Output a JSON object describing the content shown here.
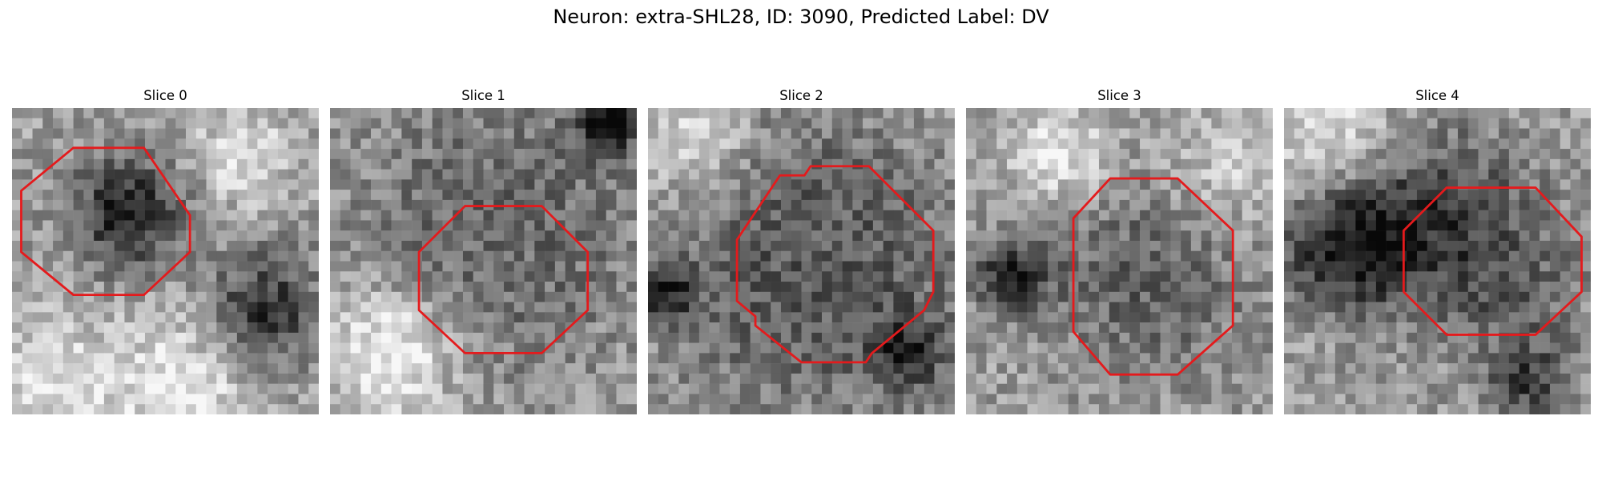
{
  "figure": {
    "title": "Neuron: extra-SHL28, ID: 3090, Predicted Label: DV"
  },
  "style": {
    "outline_color": "#e41a1c"
  },
  "panels": [
    {
      "title": "Slice 0",
      "seed": 11,
      "darkSpots": [
        [
          0.38,
          0.34,
          0.22,
          0.5
        ],
        [
          0.82,
          0.66,
          0.22,
          0.45
        ],
        [
          0.55,
          0.92,
          0.3,
          -0.3
        ],
        [
          0.1,
          0.9,
          0.25,
          -0.25
        ],
        [
          0.75,
          0.15,
          0.2,
          -0.25
        ]
      ],
      "outline": [
        [
          0.2,
          0.13
        ],
        [
          0.43,
          0.13
        ],
        [
          0.58,
          0.35
        ],
        [
          0.58,
          0.47
        ],
        [
          0.43,
          0.61
        ],
        [
          0.2,
          0.61
        ],
        [
          0.03,
          0.47
        ],
        [
          0.03,
          0.27
        ]
      ]
    },
    {
      "title": "Slice 1",
      "seed": 23,
      "darkSpots": [
        [
          0.55,
          0.4,
          0.48,
          0.35
        ],
        [
          0.55,
          0.4,
          0.3,
          -0.15
        ],
        [
          0.9,
          0.05,
          0.12,
          0.55
        ],
        [
          0.2,
          0.8,
          0.25,
          -0.4
        ]
      ],
      "outline": [
        [
          0.44,
          0.32
        ],
        [
          0.69,
          0.32
        ],
        [
          0.84,
          0.47
        ],
        [
          0.84,
          0.66
        ],
        [
          0.69,
          0.8
        ],
        [
          0.44,
          0.8
        ],
        [
          0.29,
          0.66
        ],
        [
          0.29,
          0.47
        ]
      ]
    },
    {
      "title": "Slice 2",
      "seed": 37,
      "darkSpots": [
        [
          0.55,
          0.52,
          0.5,
          0.45
        ],
        [
          0.55,
          0.52,
          0.33,
          -0.18
        ],
        [
          0.05,
          0.6,
          0.12,
          0.45
        ],
        [
          0.85,
          0.8,
          0.15,
          0.35
        ],
        [
          0.15,
          0.1,
          0.2,
          -0.3
        ]
      ],
      "outline": [
        [
          0.53,
          0.19
        ],
        [
          0.72,
          0.19
        ],
        [
          0.93,
          0.4
        ],
        [
          0.93,
          0.6
        ],
        [
          0.9,
          0.66
        ],
        [
          0.73,
          0.8
        ],
        [
          0.71,
          0.83
        ],
        [
          0.5,
          0.83
        ],
        [
          0.35,
          0.71
        ],
        [
          0.35,
          0.68
        ],
        [
          0.29,
          0.63
        ],
        [
          0.29,
          0.43
        ],
        [
          0.43,
          0.22
        ],
        [
          0.51,
          0.22
        ]
      ]
    },
    {
      "title": "Slice 3",
      "seed": 53,
      "darkSpots": [
        [
          0.6,
          0.55,
          0.4,
          0.25
        ],
        [
          0.15,
          0.55,
          0.15,
          0.45
        ],
        [
          0.3,
          0.15,
          0.2,
          -0.3
        ],
        [
          0.85,
          0.2,
          0.25,
          -0.2
        ]
      ],
      "outline": [
        [
          0.47,
          0.23
        ],
        [
          0.69,
          0.23
        ],
        [
          0.87,
          0.4
        ],
        [
          0.87,
          0.71
        ],
        [
          0.69,
          0.87
        ],
        [
          0.47,
          0.87
        ],
        [
          0.35,
          0.73
        ],
        [
          0.35,
          0.36
        ]
      ]
    },
    {
      "title": "Slice 4",
      "seed": 71,
      "darkSpots": [
        [
          0.2,
          0.45,
          0.25,
          0.5
        ],
        [
          0.5,
          0.35,
          0.35,
          0.35
        ],
        [
          0.75,
          0.6,
          0.3,
          0.2
        ],
        [
          0.15,
          0.1,
          0.25,
          -0.3
        ],
        [
          0.8,
          0.9,
          0.15,
          0.35
        ]
      ],
      "outline": [
        [
          0.53,
          0.26
        ],
        [
          0.82,
          0.26
        ],
        [
          0.97,
          0.42
        ],
        [
          0.97,
          0.6
        ],
        [
          0.82,
          0.74
        ],
        [
          0.53,
          0.74
        ],
        [
          0.39,
          0.6
        ],
        [
          0.39,
          0.4
        ]
      ]
    }
  ]
}
